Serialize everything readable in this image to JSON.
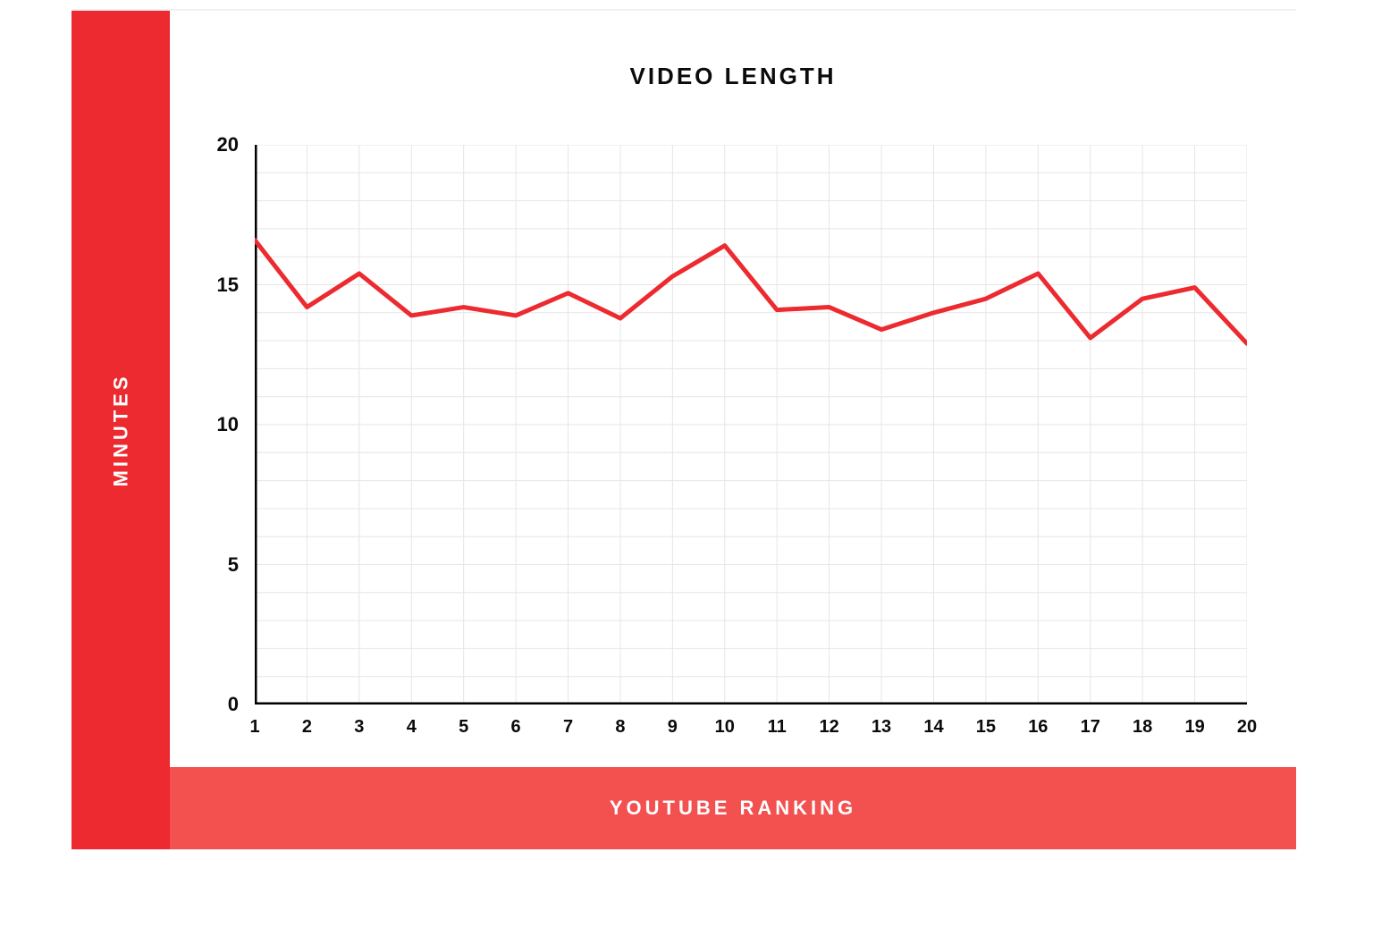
{
  "chart": {
    "type": "line",
    "title": "VIDEO LENGTH",
    "ylabel": "MINUTES",
    "xlabel": "YOUTUBE RANKING",
    "title_fontsize": 26,
    "label_fontsize": 22,
    "tick_fontsize": 22,
    "line_color": "#ec2a2f",
    "line_width": 5,
    "axis_color": "#000000",
    "axis_width": 5,
    "grid_color": "#e6e6e6",
    "grid_width": 1,
    "background_color": "#ffffff",
    "left_band_color": "#ec2a2f",
    "bottom_band_color": "#f35050",
    "band_text_color": "#ffffff",
    "ylim": [
      0,
      20
    ],
    "ytick_step": 5,
    "yticks": [
      0,
      5,
      10,
      15,
      20
    ],
    "y_minor_step": 1,
    "x_values": [
      1,
      2,
      3,
      4,
      5,
      6,
      7,
      8,
      9,
      10,
      11,
      12,
      13,
      14,
      15,
      16,
      17,
      18,
      19,
      20
    ],
    "y_values": [
      16.6,
      14.2,
      15.4,
      13.9,
      14.2,
      13.9,
      14.7,
      13.8,
      15.3,
      16.4,
      14.1,
      14.2,
      13.4,
      14.0,
      14.5,
      15.4,
      13.1,
      14.5,
      14.9,
      12.9
    ]
  }
}
